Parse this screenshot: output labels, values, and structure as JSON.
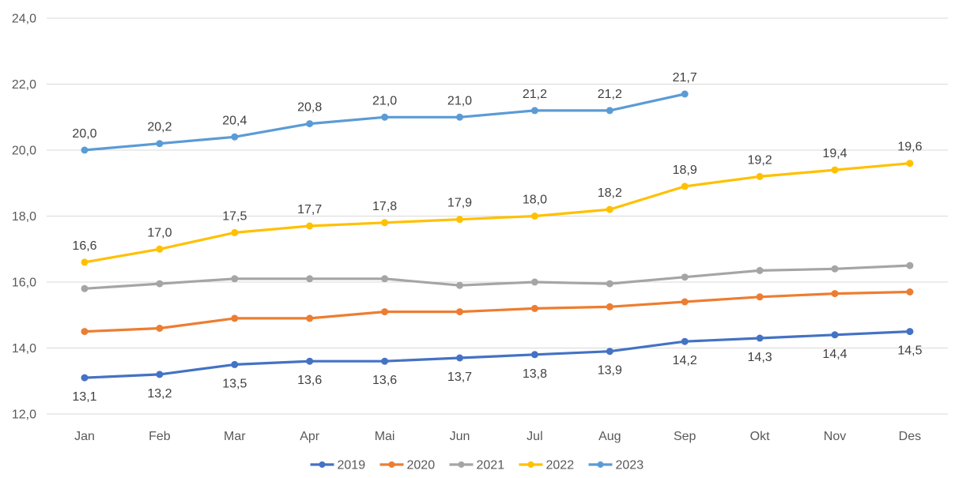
{
  "chart_data": {
    "type": "line",
    "title": "",
    "categories": [
      "Jan",
      "Feb",
      "Mar",
      "Apr",
      "Mai",
      "Jun",
      "Jul",
      "Aug",
      "Sep",
      "Okt",
      "Nov",
      "Des"
    ],
    "y_axis": {
      "min": 12,
      "max": 24,
      "step": 2,
      "tick_labels": [
        "12,0",
        "14,0",
        "16,0",
        "18,0",
        "20,0",
        "22,0",
        "24,0"
      ]
    },
    "series": [
      {
        "name": "2019",
        "color": "#4472C4",
        "values": [
          13.1,
          13.2,
          13.5,
          13.6,
          13.6,
          13.7,
          13.8,
          13.9,
          14.2,
          14.3,
          14.4,
          14.5
        ],
        "data_labels": [
          "13,1",
          "13,2",
          "13,5",
          "13,6",
          "13,6",
          "13,7",
          "13,8",
          "13,9",
          "14,2",
          "14,3",
          "14,4",
          "14,5"
        ],
        "label_position": "below"
      },
      {
        "name": "2020",
        "color": "#ED7D31",
        "values": [
          14.5,
          14.6,
          14.9,
          14.9,
          15.1,
          15.1,
          15.2,
          15.25,
          15.4,
          15.55,
          15.65,
          15.7
        ],
        "data_labels": [],
        "label_position": "none"
      },
      {
        "name": "2021",
        "color": "#A5A5A5",
        "values": [
          15.8,
          15.95,
          16.1,
          16.1,
          16.1,
          15.9,
          16.0,
          15.95,
          16.15,
          16.35,
          16.4,
          16.5
        ],
        "data_labels": [],
        "label_position": "none"
      },
      {
        "name": "2022",
        "color": "#FFC000",
        "values": [
          16.6,
          17.0,
          17.5,
          17.7,
          17.8,
          17.9,
          18.0,
          18.2,
          18.9,
          19.2,
          19.4,
          19.6
        ],
        "data_labels": [
          "16,6",
          "17,0",
          "17,5",
          "17,7",
          "17,8",
          "17,9",
          "18,0",
          "18,2",
          "18,9",
          "19,2",
          "19,4",
          "19,6"
        ],
        "label_position": "above"
      },
      {
        "name": "2023",
        "color": "#5B9BD5",
        "values": [
          20.0,
          20.2,
          20.4,
          20.8,
          21.0,
          21.0,
          21.2,
          21.2,
          21.7
        ],
        "data_labels": [
          "20,0",
          "20,2",
          "20,4",
          "20,8",
          "21,0",
          "21,0",
          "21,2",
          "21,2",
          "21,7"
        ],
        "label_position": "above"
      }
    ],
    "legend": {
      "position": "bottom",
      "entries": [
        "2019",
        "2020",
        "2021",
        "2022",
        "2023"
      ]
    },
    "grid": true,
    "colors": {
      "background": "#FFFFFF",
      "gridline": "#D9D9D9",
      "axis_text": "#595959",
      "data_label_text": "#404040",
      "legend_text": "#595959"
    }
  }
}
